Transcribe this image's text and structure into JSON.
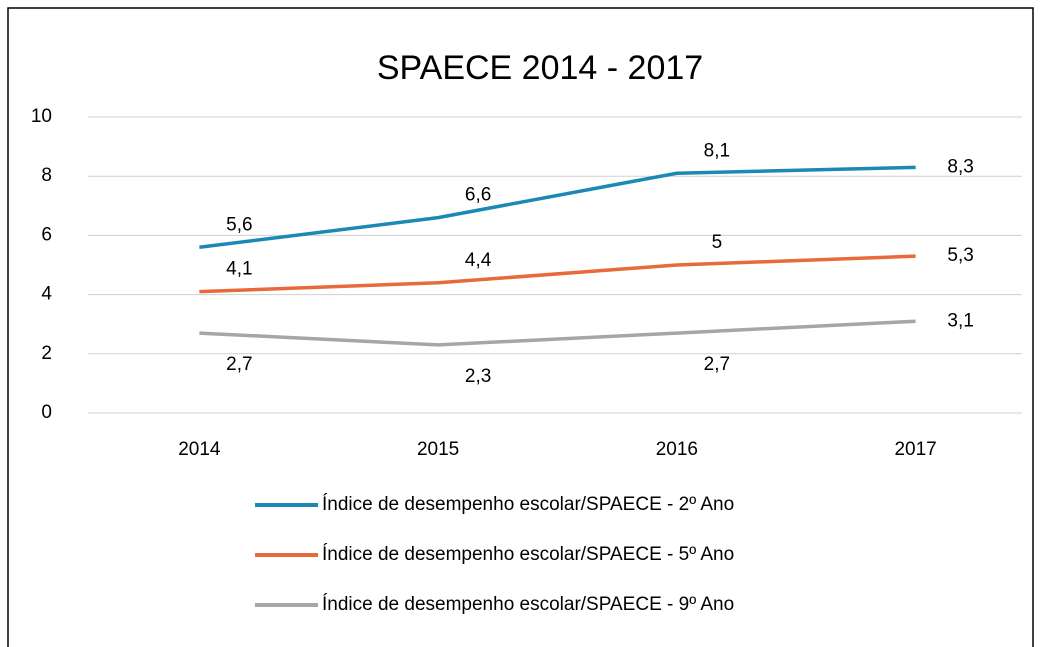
{
  "chart_data": {
    "type": "line",
    "title": "SPAECE 2014 - 2017",
    "categories": [
      "2014",
      "2015",
      "2016",
      "2017"
    ],
    "series": [
      {
        "name": "Índice de desempenho escolar/SPAECE - 2º Ano",
        "color": "#1a8ab4",
        "values": [
          5.6,
          6.6,
          8.1,
          8.3
        ],
        "value_labels": [
          "5,6",
          "6,6",
          "8,1",
          "8,3"
        ]
      },
      {
        "name": "Índice de desempenho escolar/SPAECE - 5º Ano",
        "color": "#e8693a",
        "values": [
          4.1,
          4.4,
          5,
          5.3
        ],
        "value_labels": [
          "4,1",
          "4,4",
          "5",
          "5,3"
        ]
      },
      {
        "name": "Índice de desempenho escolar/SPAECE - 9º Ano",
        "color": "#a6a6a6",
        "values": [
          2.7,
          2.3,
          2.7,
          3.1
        ],
        "value_labels": [
          "2,7",
          "2,3",
          "2,7",
          "3,1"
        ]
      }
    ],
    "ylim": [
      0,
      10
    ],
    "yticks": [
      0,
      2,
      4,
      6,
      8,
      10
    ],
    "grid": true,
    "legend": "bottom"
  }
}
